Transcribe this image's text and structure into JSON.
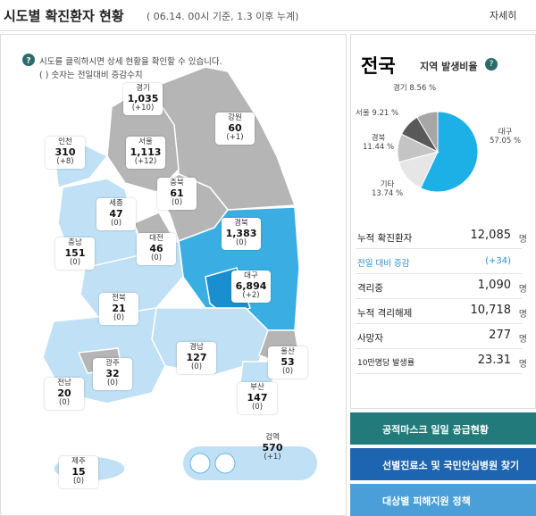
{
  "header": {
    "title": "시도별 확진환자 현황",
    "subtitle": "( 06.14. 00시 기준, 1.3 이후 누계)",
    "button": "자세히"
  },
  "notes": [
    "시도를 클릭하시면 상세 현황을 확인할 수 있습니다.",
    "( ) 숫자는 전일대비 증감수치"
  ],
  "regions": [
    {
      "name": "경기",
      "count": "1,035",
      "change": "(+10)"
    },
    {
      "name": "강원",
      "count": "60",
      "change": "(+1)"
    },
    {
      "name": "인천",
      "count": "310",
      "change": "(+8)"
    },
    {
      "name": "서울",
      "count": "1,113",
      "change": "(+12)"
    },
    {
      "name": "충북",
      "count": "61",
      "change": "(0)"
    },
    {
      "name": "세종",
      "count": "47",
      "change": "(0)"
    },
    {
      "name": "대전",
      "count": "46",
      "change": "(0)"
    },
    {
      "name": "경북",
      "count": "1,383",
      "change": "(0)"
    },
    {
      "name": "충남",
      "count": "151",
      "change": "(0)"
    },
    {
      "name": "대구",
      "count": "6,894",
      "change": "(+2)"
    },
    {
      "name": "전북",
      "count": "21",
      "change": "(0)"
    },
    {
      "name": "경남",
      "count": "127",
      "change": "(0)"
    },
    {
      "name": "울산",
      "count": "53",
      "change": "(0)"
    },
    {
      "name": "광주",
      "count": "32",
      "change": "(0)"
    },
    {
      "name": "전남",
      "count": "20",
      "change": "(0)"
    },
    {
      "name": "부산",
      "count": "147",
      "change": "(0)"
    },
    {
      "name": "검역",
      "count": "570",
      "change": "(+1)"
    },
    {
      "name": "제주",
      "count": "15",
      "change": "(0)"
    }
  ],
  "panel": {
    "title": "전국",
    "subtitle": "지역 발생비율",
    "stats": [
      {
        "label": "누적 확진환자",
        "value": "12,085",
        "unit": "명"
      },
      {
        "label": "전일 대비 증감",
        "value": "(+34)"
      },
      {
        "label": "격리중",
        "value": "1,090",
        "unit": "명"
      },
      {
        "label": "누적 격리해제",
        "value": "10,718",
        "unit": "명"
      },
      {
        "label": "사망자",
        "value": "277",
        "unit": "명"
      },
      {
        "label": "10만명당 발생률",
        "value": "23.31",
        "unit": "명"
      }
    ]
  },
  "buttons": [
    "공적마스크 일일 공급현황",
    "선별진료소 및 국민안심병원 찾기",
    "대상별 피해지원 정책"
  ],
  "chart_data": {
    "type": "pie",
    "categories": [
      "대구",
      "기타",
      "경북",
      "서울",
      "경기"
    ],
    "values": [
      57.05,
      13.74,
      11.44,
      9.21,
      8.56
    ],
    "value_labels": [
      "57.05 %",
      "13.74 %",
      "11.44 %",
      "9.21 %",
      "8.56 %"
    ],
    "colors": [
      "#1cb0e6",
      "#e6e6e6",
      "#c4c4c4",
      "#595959",
      "#a6a6a6"
    ]
  }
}
